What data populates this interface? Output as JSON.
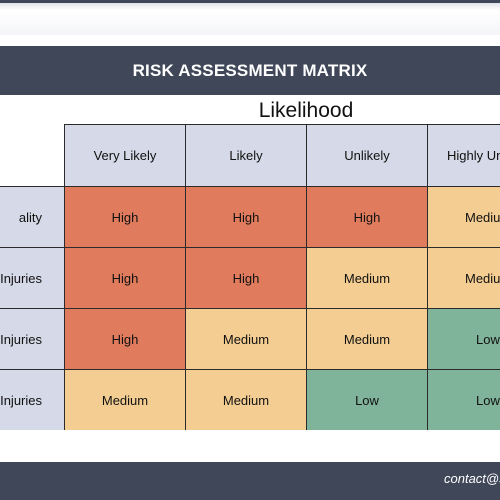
{
  "title": "RISK ASSESSMENT MATRIX",
  "axis_title": "Likelihood",
  "columns": [
    "Very Likely",
    "Likely",
    "Unlikely",
    "Highly Un"
  ],
  "rows": [
    {
      "label": "ality",
      "cells": [
        "High",
        "High",
        "High",
        "Mediu"
      ]
    },
    {
      "label": "Injuries",
      "cells": [
        "High",
        "High",
        "Medium",
        "Mediu"
      ]
    },
    {
      "label": "Injuries",
      "cells": [
        "High",
        "Medium",
        "Medium",
        "Low"
      ]
    },
    {
      "label": "le Injuries",
      "cells": [
        "Medium",
        "Medium",
        "Low",
        "Low"
      ]
    }
  ],
  "colors": {
    "High": "#e07c5d",
    "Medium": "#f4cd92",
    "Mediu": "#f4cd92",
    "Low": "#80b49a",
    "header": "#d6d9e7",
    "bar": "#3f4759"
  },
  "footer": {
    "contact": "contact@s"
  }
}
